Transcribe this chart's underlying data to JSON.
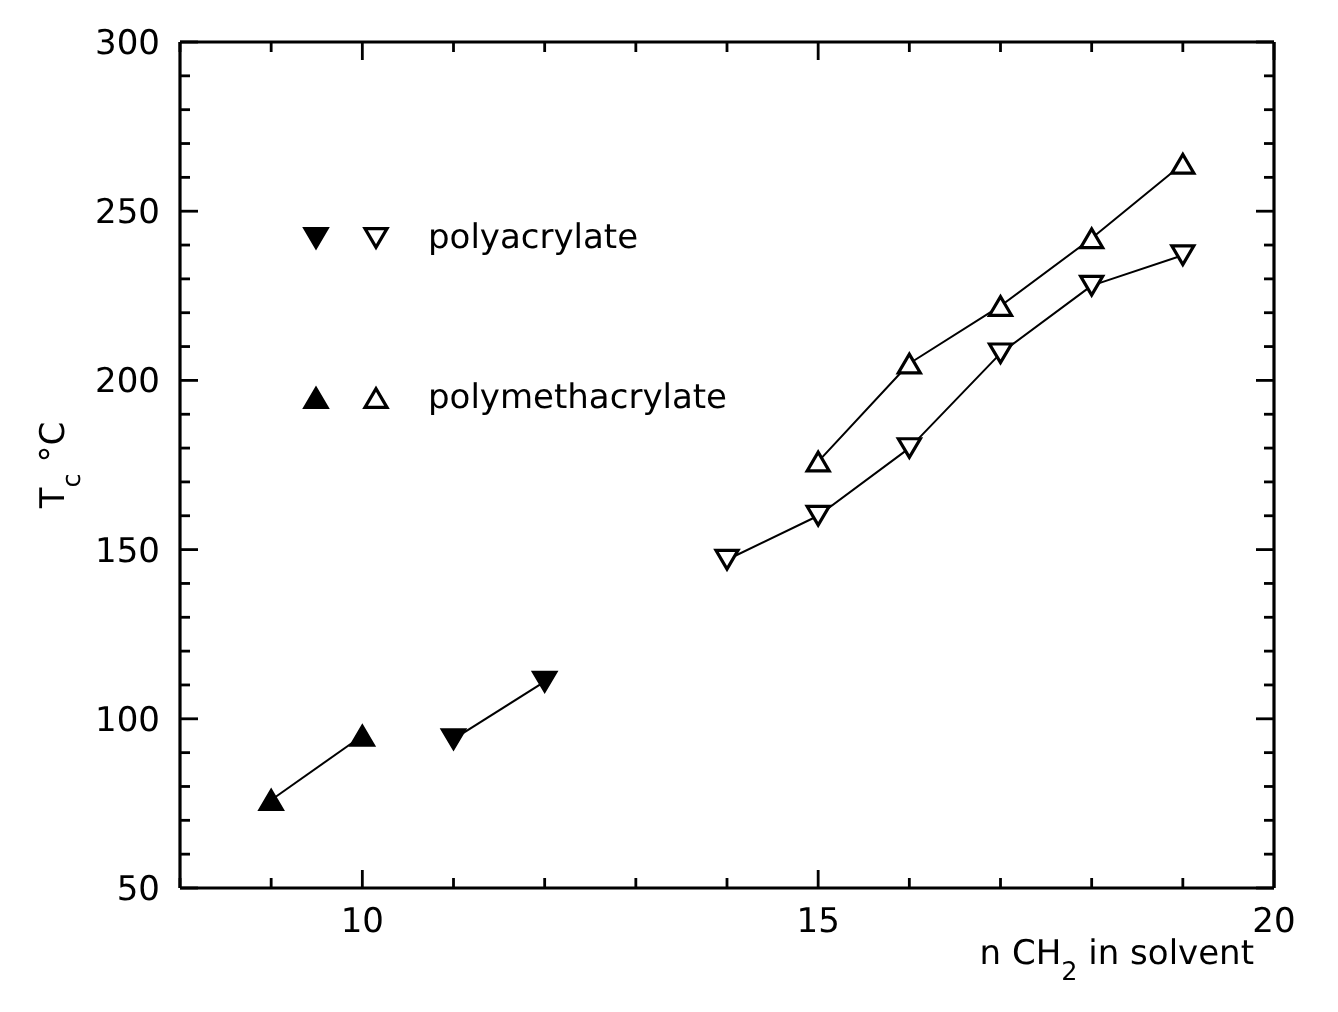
{
  "chart_data": {
    "type": "line",
    "xlabel": "n CH$_{2}$ in solvent",
    "ylabel": "T$_{c}$ °C",
    "xlim": [
      8,
      20
    ],
    "xticks": [
      {
        "value": 8,
        "label": null
      },
      {
        "value": 9,
        "label": null
      },
      10,
      {
        "value": 11,
        "label": null
      },
      {
        "value": 12,
        "label": null
      },
      {
        "value": 13,
        "label": null
      },
      {
        "value": 14,
        "label": null
      },
      15,
      {
        "value": 16,
        "label": null
      },
      {
        "value": 17,
        "label": null
      },
      {
        "value": 18,
        "label": null
      },
      {
        "value": 19,
        "label": null
      },
      20
    ],
    "ylim": [
      50,
      300
    ],
    "yticks": [
      50,
      {
        "value": 60,
        "label": null
      },
      {
        "value": 70,
        "label": null
      },
      {
        "value": 80,
        "label": null
      },
      {
        "value": 90,
        "label": null
      },
      100,
      {
        "value": 110,
        "label": null
      },
      {
        "value": 120,
        "label": null
      },
      {
        "value": 130,
        "label": null
      },
      {
        "value": 140,
        "label": null
      },
      150,
      {
        "value": 160,
        "label": null
      },
      {
        "value": 170,
        "label": null
      },
      {
        "value": 180,
        "label": null
      },
      {
        "value": 190,
        "label": null
      },
      200,
      {
        "value": 210,
        "label": null
      },
      {
        "value": 220,
        "label": null
      },
      {
        "value": 230,
        "label": null
      },
      {
        "value": 240,
        "label": null
      },
      250,
      {
        "value": 260,
        "label": null
      },
      {
        "value": 270,
        "label": null
      },
      {
        "value": 280,
        "label": null
      },
      {
        "value": 290,
        "label": null
      },
      300
    ],
    "legend": "top left",
    "line_style": "solid",
    "series": [
      {
        "color": "#000000",
        "marker": "triangle-down",
        "x": [
          11,
          12
        ],
        "values": [
          94,
          111
        ]
      },
      {
        "name": "polyacrylate",
        "color": "#000000",
        "marker": "triangle-down-open",
        "x": [
          14,
          15,
          16,
          17,
          18,
          19
        ],
        "values": [
          147,
          160,
          180,
          208,
          228,
          237
        ]
      },
      {
        "color": "#000000",
        "marker": "triangle",
        "x": [
          9,
          10
        ],
        "values": [
          76,
          95
        ]
      },
      {
        "name": "polymethacrylate",
        "color": "#000000",
        "marker": "triangle-open",
        "x": [
          15,
          16,
          17,
          18,
          19
        ],
        "values": [
          176,
          205,
          222,
          242,
          264
        ]
      }
    ]
  }
}
